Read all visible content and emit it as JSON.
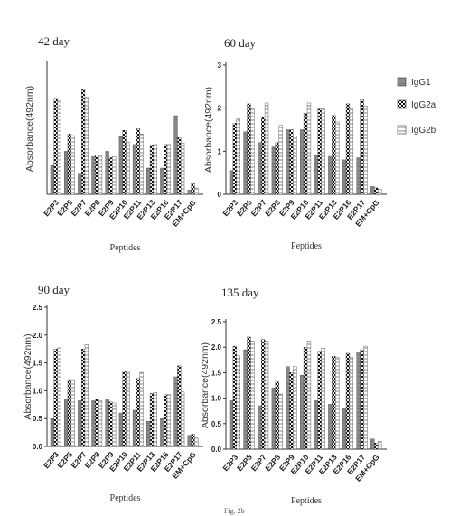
{
  "colors": {
    "IgG1": "#8c8c8c",
    "IgG2a": "#303030",
    "IgG2b": "#cfcfcf"
  },
  "legend": {
    "IgG1": "IgG1",
    "IgG2a": "IgG2a",
    "IgG2b": "IgG2b"
  },
  "caption": "Fig. 2b",
  "chart_data": [
    {
      "type": "bar",
      "title": "42 day",
      "xlabel": "Peptides",
      "ylabel": "Absorbance(492nm)",
      "ylim": [
        0,
        2.5
      ],
      "yticks": [],
      "categories": [
        "E2P3",
        "E2P5",
        "E2P7",
        "E2P8",
        "E2P9",
        "E2P10",
        "E2P11",
        "E2P13",
        "E2P16",
        "E2P17",
        "EM+CpG"
      ],
      "series": [
        {
          "name": "IgG1",
          "values": [
            0.55,
            0.82,
            0.4,
            0.72,
            0.82,
            1.1,
            0.95,
            0.5,
            0.5,
            1.5,
            0.08
          ]
        },
        {
          "name": "IgG2a",
          "values": [
            1.83,
            1.15,
            2.0,
            0.75,
            0.7,
            1.22,
            1.25,
            0.93,
            0.95,
            1.08,
            0.2
          ]
        },
        {
          "name": "IgG2b",
          "values": [
            1.78,
            1.12,
            1.85,
            0.75,
            0.72,
            1.0,
            1.15,
            0.95,
            0.95,
            0.98,
            0.12
          ]
        }
      ]
    },
    {
      "type": "bar",
      "title": "60 day",
      "xlabel": "Peptides",
      "ylabel": "Absorbance(492nm)",
      "ylim": [
        0,
        3
      ],
      "yticks": [
        "0",
        "1",
        "2",
        "3"
      ],
      "categories": [
        "E2P3",
        "E2P5",
        "E2P7",
        "E2P8",
        "E2P9",
        "E2P10",
        "E2P11",
        "E2P13",
        "E2P16",
        "E2P17",
        "EM+CpG"
      ],
      "series": [
        {
          "name": "IgG1",
          "values": [
            0.55,
            1.45,
            1.2,
            1.1,
            1.5,
            1.5,
            0.92,
            0.88,
            0.8,
            0.85,
            0.18
          ]
        },
        {
          "name": "IgG2a",
          "values": [
            1.65,
            2.1,
            1.8,
            1.2,
            1.5,
            1.88,
            1.98,
            1.83,
            2.1,
            2.2,
            0.15
          ]
        },
        {
          "name": "IgG2b",
          "values": [
            1.75,
            1.98,
            2.12,
            1.6,
            1.35,
            2.12,
            1.98,
            1.68,
            1.98,
            2.05,
            0.12
          ]
        }
      ]
    },
    {
      "type": "bar",
      "title": "90 day",
      "xlabel": "Peptides",
      "ylabel": "Absorbance(492nm)",
      "ylim": [
        0,
        2.5
      ],
      "yticks": [
        "0.0",
        "0.5",
        "1.0",
        "1.5",
        "2.0",
        "2.5"
      ],
      "categories": [
        "E2P3",
        "E2P5",
        "E2P7",
        "E2P8",
        "E2P9",
        "E2P10",
        "E2P11",
        "E2P13",
        "E2P16",
        "E2P17",
        "EM+CpG"
      ],
      "series": [
        {
          "name": "IgG1",
          "values": [
            0.5,
            0.85,
            0.82,
            0.82,
            0.85,
            0.6,
            0.65,
            0.45,
            0.5,
            1.25,
            0.2
          ]
        },
        {
          "name": "IgG2a",
          "values": [
            1.75,
            1.2,
            1.75,
            0.85,
            0.8,
            1.35,
            1.22,
            0.95,
            0.93,
            1.45,
            0.22
          ]
        },
        {
          "name": "IgG2b",
          "values": [
            1.77,
            1.2,
            1.83,
            0.82,
            0.78,
            1.35,
            1.33,
            0.97,
            0.93,
            0.98,
            0.15
          ]
        }
      ]
    },
    {
      "type": "bar",
      "title": "135 day",
      "xlabel": "Peptides",
      "ylabel": "Absorbance(492nm)",
      "ylim": [
        0,
        2.5
      ],
      "yticks": [
        "0.0",
        "0.5",
        "1.0",
        "1.5",
        "2.0",
        "2.5"
      ],
      "categories": [
        "E2P3",
        "E2P5",
        "E2P7",
        "E2P8",
        "E2P9",
        "E2P10",
        "E2P11",
        "E2P13",
        "E2P16",
        "E2P17",
        "EM+CpG"
      ],
      "series": [
        {
          "name": "IgG1",
          "values": [
            0.95,
            1.95,
            0.85,
            1.2,
            1.62,
            1.45,
            0.95,
            0.88,
            0.8,
            1.9,
            0.2
          ]
        },
        {
          "name": "IgG2a",
          "values": [
            2.02,
            2.2,
            2.15,
            1.32,
            1.5,
            2.0,
            1.92,
            1.82,
            1.88,
            1.95,
            0.12
          ]
        },
        {
          "name": "IgG2b",
          "values": [
            1.83,
            2.12,
            2.12,
            1.08,
            1.62,
            2.12,
            1.98,
            1.8,
            1.8,
            2.02,
            0.15
          ]
        }
      ]
    }
  ]
}
